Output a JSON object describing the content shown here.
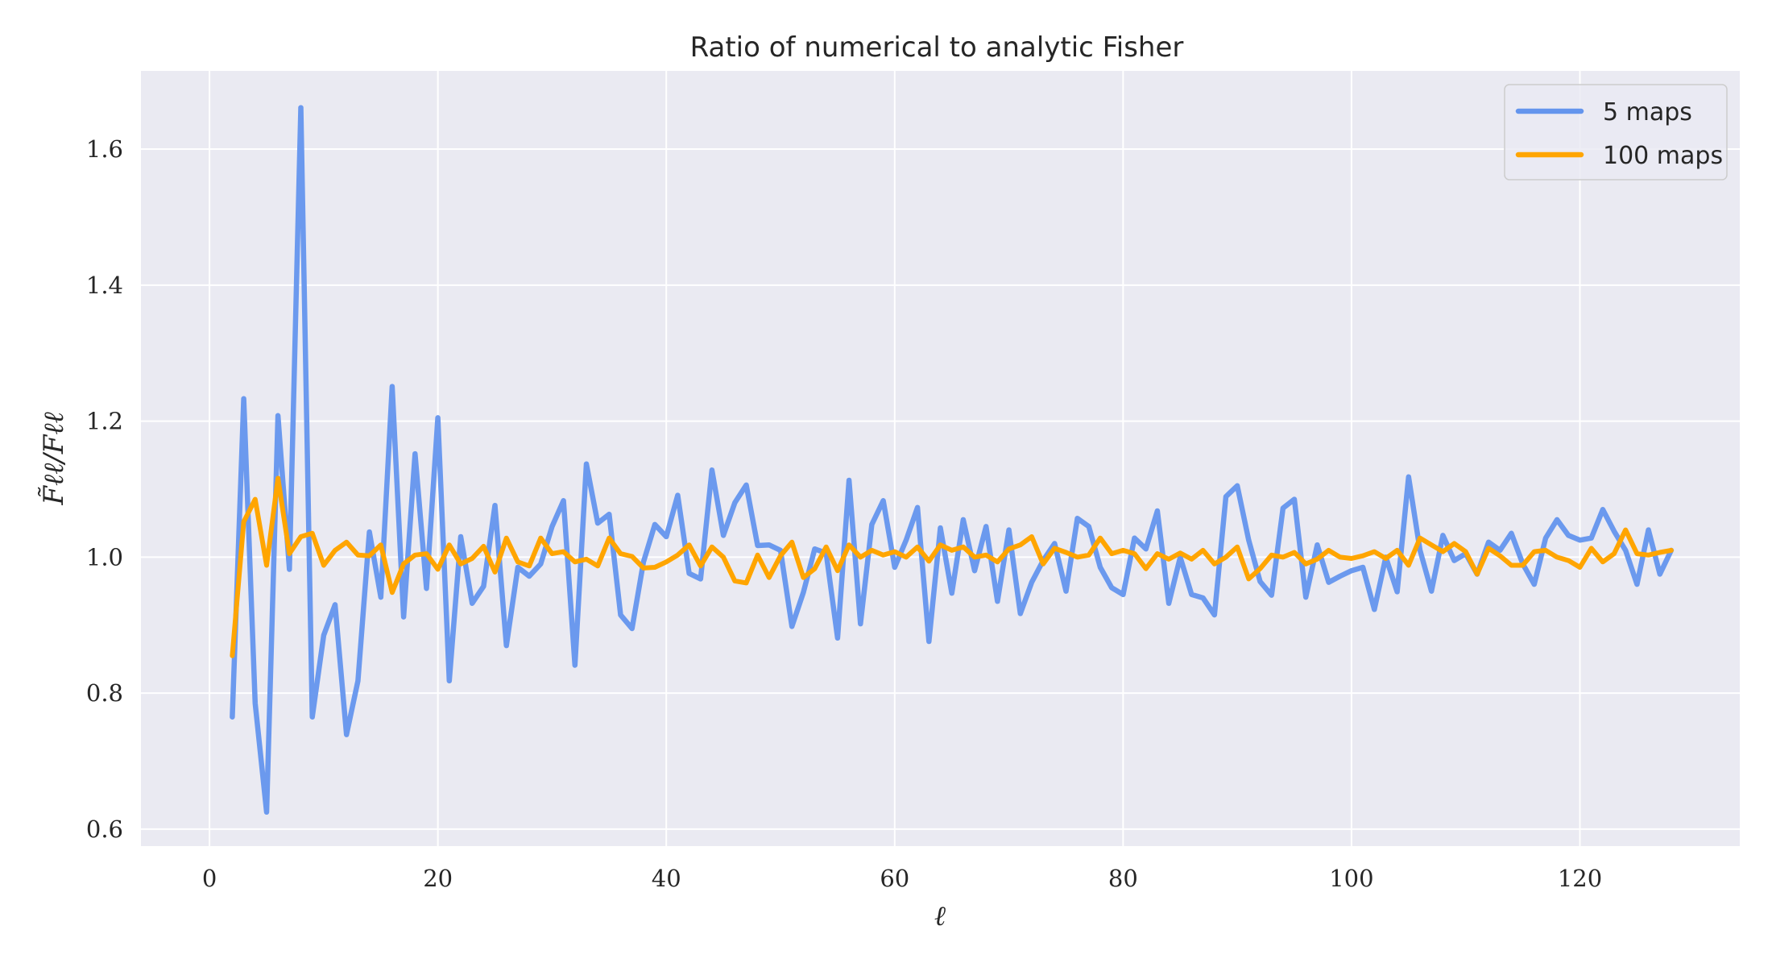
{
  "chart_data": {
    "type": "line",
    "title": "Ratio of numerical to analytic Fisher",
    "xlabel": "ℓ",
    "ylabel": "F̃ℓℓ/Fℓℓ",
    "xlim": [
      -6,
      134
    ],
    "ylim": [
      0.575,
      1.715
    ],
    "xticks": [
      0,
      20,
      40,
      60,
      80,
      100,
      120
    ],
    "yticks": [
      0.6,
      0.8,
      1.0,
      1.2,
      1.4,
      1.6
    ],
    "ytick_labels": [
      "0.6",
      "0.8",
      "1.0",
      "1.2",
      "1.4",
      "1.6"
    ],
    "grid": true,
    "legend_position": "top-right",
    "x": [
      2,
      3,
      4,
      5,
      6,
      7,
      8,
      9,
      10,
      11,
      12,
      13,
      14,
      15,
      16,
      17,
      18,
      19,
      20,
      21,
      22,
      23,
      24,
      25,
      26,
      27,
      28,
      29,
      30,
      31,
      32,
      33,
      34,
      35,
      36,
      37,
      38,
      39,
      40,
      41,
      42,
      43,
      44,
      45,
      46,
      47,
      48,
      49,
      50,
      51,
      52,
      53,
      54,
      55,
      56,
      57,
      58,
      59,
      60,
      61,
      62,
      63,
      64,
      65,
      66,
      67,
      68,
      69,
      70,
      71,
      72,
      73,
      74,
      75,
      76,
      77,
      78,
      79,
      80,
      81,
      82,
      83,
      84,
      85,
      86,
      87,
      88,
      89,
      90,
      91,
      92,
      93,
      94,
      95,
      96,
      97,
      98,
      99,
      100,
      101,
      102,
      103,
      104,
      105,
      106,
      107,
      108,
      109,
      110,
      111,
      112,
      113,
      114,
      115,
      116,
      117,
      118,
      119,
      120,
      121,
      122,
      123,
      124,
      125,
      126,
      127,
      128
    ],
    "series": [
      {
        "name": "5 maps",
        "color": "#6495ed",
        "values": [
          0.765,
          1.233,
          0.785,
          0.625,
          1.208,
          0.982,
          1.661,
          0.765,
          0.885,
          0.93,
          0.739,
          0.818,
          1.037,
          0.941,
          1.251,
          0.912,
          1.152,
          0.954,
          1.205,
          0.818,
          1.03,
          0.932,
          0.957,
          1.076,
          0.87,
          0.985,
          0.972,
          0.99,
          1.045,
          1.083,
          0.841,
          1.137,
          1.05,
          1.063,
          0.915,
          0.895,
          0.993,
          1.048,
          1.03,
          1.091,
          0.976,
          0.968,
          1.128,
          1.032,
          1.08,
          1.106,
          1.017,
          1.018,
          1.01,
          0.898,
          0.948,
          1.012,
          1.006,
          0.881,
          1.113,
          0.902,
          1.048,
          1.083,
          0.985,
          1.025,
          1.073,
          0.876,
          1.043,
          0.947,
          1.055,
          0.98,
          1.045,
          0.935,
          1.04,
          0.917,
          0.963,
          0.995,
          1.02,
          0.95,
          1.057,
          1.045,
          0.985,
          0.955,
          0.945,
          1.028,
          1.012,
          1.068,
          0.932,
          1.0,
          0.945,
          0.94,
          0.915,
          1.089,
          1.105,
          1.025,
          0.964,
          0.944,
          1.072,
          1.085,
          0.941,
          1.018,
          0.963,
          0.972,
          0.98,
          0.985,
          0.923,
          1.0,
          0.949,
          1.118,
          1.01,
          0.95,
          1.032,
          0.995,
          1.005,
          0.975,
          1.022,
          1.01,
          1.035,
          0.99,
          0.96,
          1.028,
          1.055,
          1.032,
          1.025,
          1.028,
          1.07,
          1.038,
          1.01,
          0.96,
          1.04,
          0.975,
          1.01
        ]
      },
      {
        "name": "100 maps",
        "color": "#ffa500",
        "values": [
          0.855,
          1.052,
          1.085,
          0.988,
          1.116,
          1.005,
          1.03,
          1.035,
          0.988,
          1.01,
          1.022,
          1.003,
          1.002,
          1.018,
          0.948,
          0.99,
          1.003,
          1.005,
          0.982,
          1.018,
          0.99,
          0.998,
          1.016,
          0.978,
          1.028,
          0.993,
          0.987,
          1.028,
          1.005,
          1.008,
          0.993,
          0.997,
          0.987,
          1.028,
          1.005,
          1.001,
          0.984,
          0.985,
          0.993,
          1.003,
          1.018,
          0.987,
          1.015,
          1.0,
          0.965,
          0.962,
          1.003,
          0.97,
          1.002,
          1.022,
          0.97,
          0.983,
          1.015,
          0.98,
          1.018,
          1.0,
          1.01,
          1.003,
          1.008,
          1.0,
          1.015,
          0.994,
          1.018,
          1.01,
          1.015,
          1.0,
          1.003,
          0.993,
          1.012,
          1.018,
          1.03,
          0.99,
          1.013,
          1.007,
          1.0,
          1.003,
          1.028,
          1.005,
          1.01,
          1.005,
          0.983,
          1.005,
          0.997,
          1.006,
          0.997,
          1.01,
          0.99,
          1.0,
          1.015,
          0.968,
          0.983,
          1.003,
          1.0,
          1.007,
          0.99,
          0.997,
          1.01,
          1.0,
          0.998,
          1.002,
          1.008,
          0.998,
          1.01,
          0.988,
          1.028,
          1.018,
          1.008,
          1.02,
          1.008,
          0.975,
          1.013,
          1.002,
          0.988,
          0.988,
          1.008,
          1.01,
          1.0,
          0.995,
          0.985,
          1.013,
          0.993,
          1.005,
          1.04,
          1.005,
          1.003,
          1.007,
          1.01
        ]
      }
    ]
  }
}
